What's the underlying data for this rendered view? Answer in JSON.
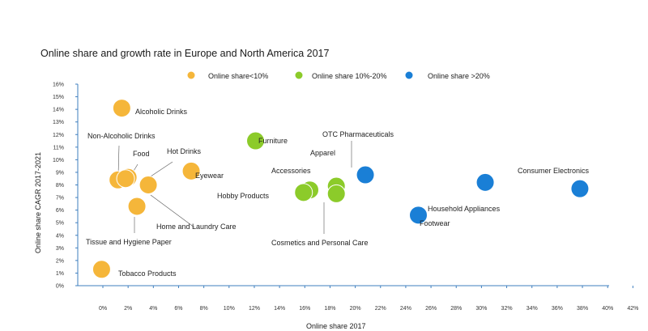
{
  "chart_data": {
    "type": "scatter",
    "title": "Online share and growth rate in Europe and North America  2017",
    "xlabel": "Online share 2017",
    "ylabel": "Online share CAGR 2017-2021",
    "xlim": [
      -0.02,
      0.42
    ],
    "ylim": [
      0,
      0.16
    ],
    "x_ticks": [
      "0%",
      "2%",
      "4%",
      "6%",
      "8%",
      "10%",
      "12%",
      "14%",
      "16%",
      "18%",
      "20%",
      "22%",
      "24%",
      "26%",
      "28%",
      "30%",
      "32%",
      "34%",
      "36%",
      "38%",
      "40%",
      "42%"
    ],
    "y_ticks": [
      "0%",
      "1%",
      "2%",
      "3%",
      "4%",
      "5%",
      "6%",
      "7%",
      "8%",
      "9%",
      "10%",
      "11%",
      "12%",
      "13%",
      "14%",
      "15%",
      "16%"
    ],
    "grid": false,
    "legend_position": "top",
    "colors": {
      "low": "#F5B63A",
      "mid": "#8CCB2A",
      "high": "#1A7FD6",
      "axis": "#3F7FBF"
    },
    "series": [
      {
        "name": "Online share<10%",
        "group": "low",
        "points": [
          {
            "label": "Alcoholic Drinks",
            "x": 0.015,
            "y": 0.141
          },
          {
            "label": "Non-Alcoholic Drinks",
            "x": 0.012,
            "y": 0.084
          },
          {
            "label": "Food",
            "x": 0.02,
            "y": 0.086
          },
          {
            "label": "Hot Drinks",
            "x": 0.018,
            "y": 0.085
          },
          {
            "label": "Eyewear",
            "x": 0.07,
            "y": 0.091
          },
          {
            "label": "Home and Laundry Care",
            "x": 0.036,
            "y": 0.08
          },
          {
            "label": "Tissue and Hygiene Paper",
            "x": 0.027,
            "y": 0.063
          },
          {
            "label": "Tobacco Products",
            "x": -0.001,
            "y": 0.013
          }
        ]
      },
      {
        "name": "Online share 10%-20%",
        "group": "mid",
        "points": [
          {
            "label": "Furniture",
            "x": 0.121,
            "y": 0.115
          },
          {
            "label": "Accessories",
            "x": 0.164,
            "y": 0.076
          },
          {
            "label": "Hobby Products",
            "x": 0.159,
            "y": 0.074
          },
          {
            "label": "Apparel",
            "x": 0.185,
            "y": 0.079
          },
          {
            "label": "Cosmetics and Personal Care",
            "x": 0.185,
            "y": 0.073
          }
        ]
      },
      {
        "name": "Online share >20%",
        "group": "high",
        "points": [
          {
            "label": "OTC Pharmaceuticals",
            "x": 0.208,
            "y": 0.088
          },
          {
            "label": "Consumer Electronics",
            "x": 0.378,
            "y": 0.077
          },
          {
            "label": "Household Appliances",
            "x": 0.303,
            "y": 0.082
          },
          {
            "label": "Footwear",
            "x": 0.25,
            "y": 0.056
          }
        ]
      }
    ]
  }
}
